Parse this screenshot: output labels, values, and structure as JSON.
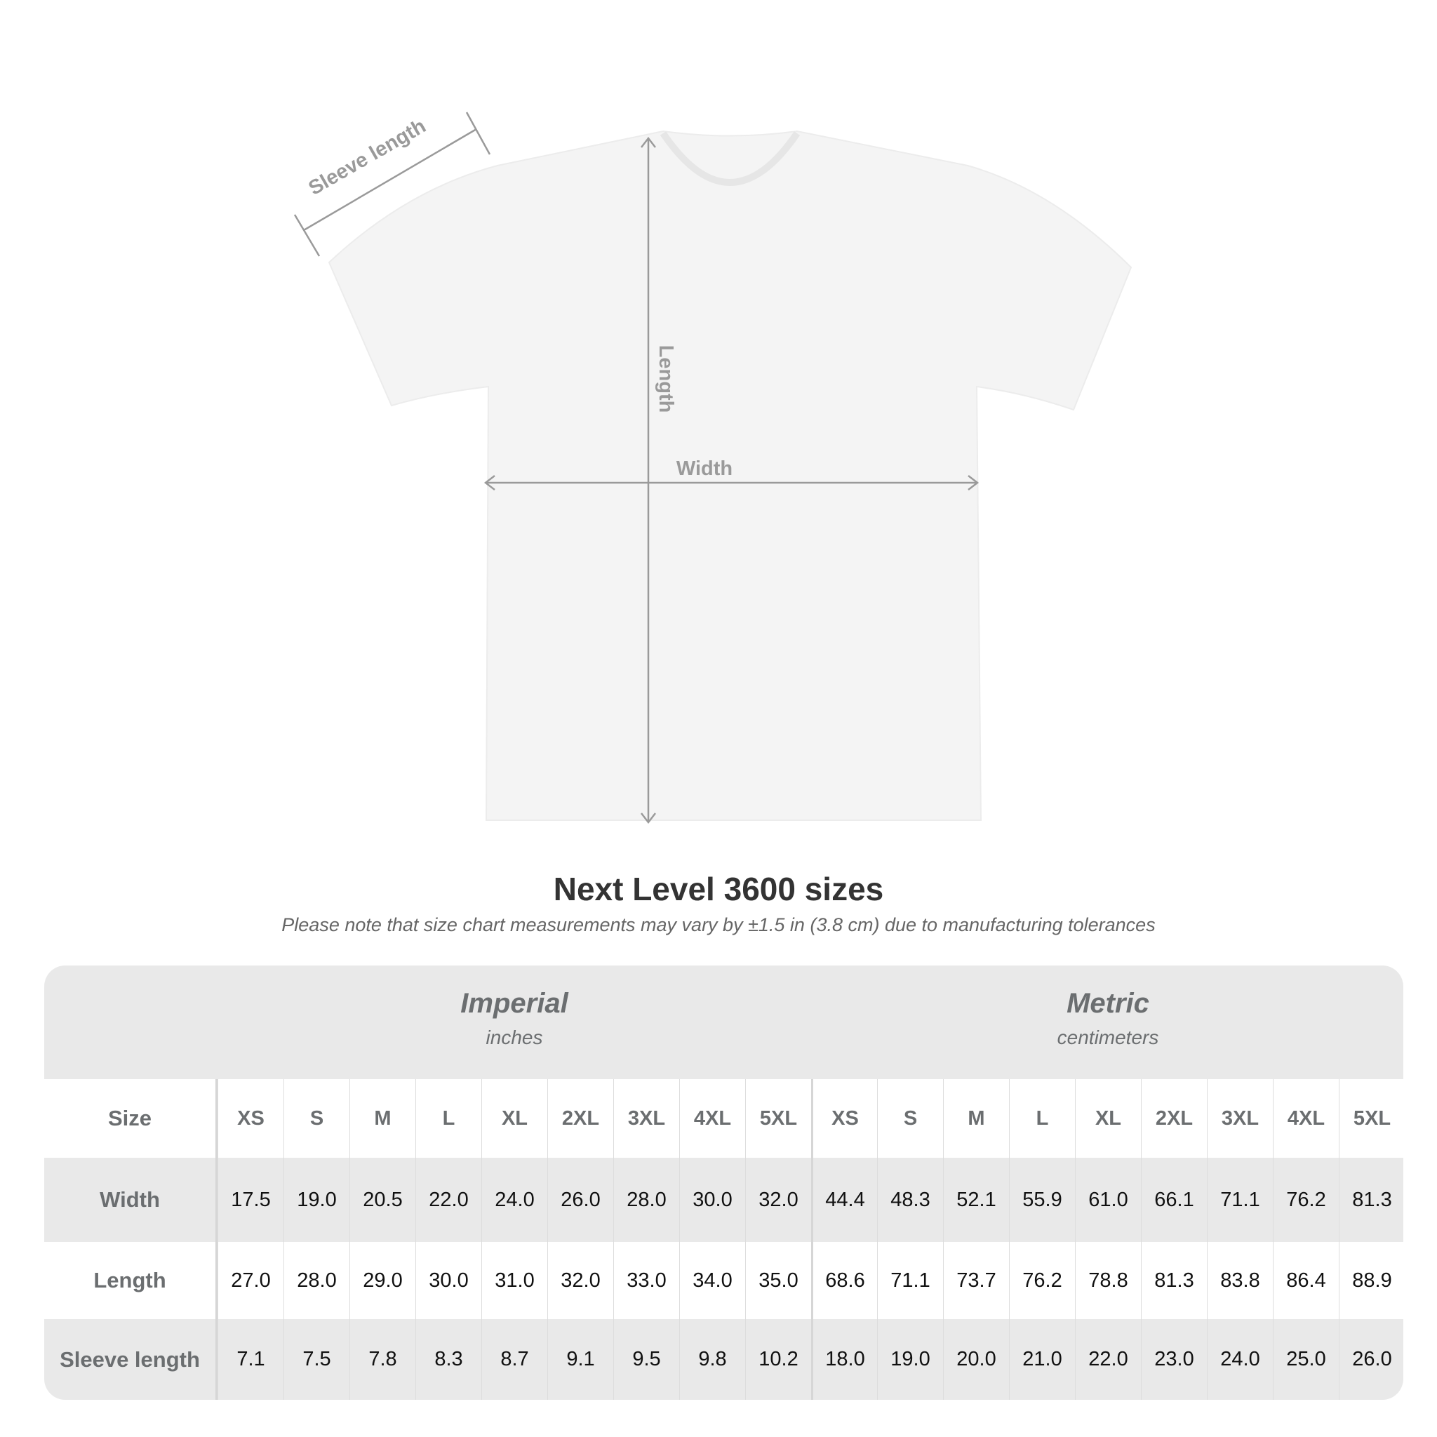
{
  "diagram": {
    "labels": {
      "sleeve": "Sleeve length",
      "length": "Length",
      "width": "Width"
    },
    "colors": {
      "shirt": "#f4f4f4",
      "measure_line": "#9a9a9a"
    }
  },
  "title": "Next Level 3600 sizes",
  "subtitle": "Please note that size chart measurements may vary by ±1.5 in (3.8 cm) due to manufacturing tolerances",
  "table": {
    "imperial": {
      "title": "Imperial",
      "unit": "inches"
    },
    "metric": {
      "title": "Metric",
      "unit": "centimeters"
    },
    "size_label": "Size",
    "sizes": [
      "XS",
      "S",
      "M",
      "L",
      "XL",
      "2XL",
      "3XL",
      "4XL",
      "5XL"
    ],
    "rows": [
      {
        "label": "Width",
        "imperial": [
          "17.5",
          "19.0",
          "20.5",
          "22.0",
          "24.0",
          "26.0",
          "28.0",
          "30.0",
          "32.0"
        ],
        "metric": [
          "44.4",
          "48.3",
          "52.1",
          "55.9",
          "61.0",
          "66.1",
          "71.1",
          "76.2",
          "81.3"
        ]
      },
      {
        "label": "Length",
        "imperial": [
          "27.0",
          "28.0",
          "29.0",
          "30.0",
          "31.0",
          "32.0",
          "33.0",
          "34.0",
          "35.0"
        ],
        "metric": [
          "68.6",
          "71.1",
          "73.7",
          "76.2",
          "78.8",
          "81.3",
          "83.8",
          "86.4",
          "88.9"
        ]
      },
      {
        "label": "Sleeve length",
        "imperial": [
          "7.1",
          "7.5",
          "7.8",
          "8.3",
          "8.7",
          "9.1",
          "9.5",
          "9.8",
          "10.2"
        ],
        "metric": [
          "18.0",
          "19.0",
          "20.0",
          "21.0",
          "22.0",
          "23.0",
          "24.0",
          "25.0",
          "26.0"
        ]
      }
    ]
  }
}
